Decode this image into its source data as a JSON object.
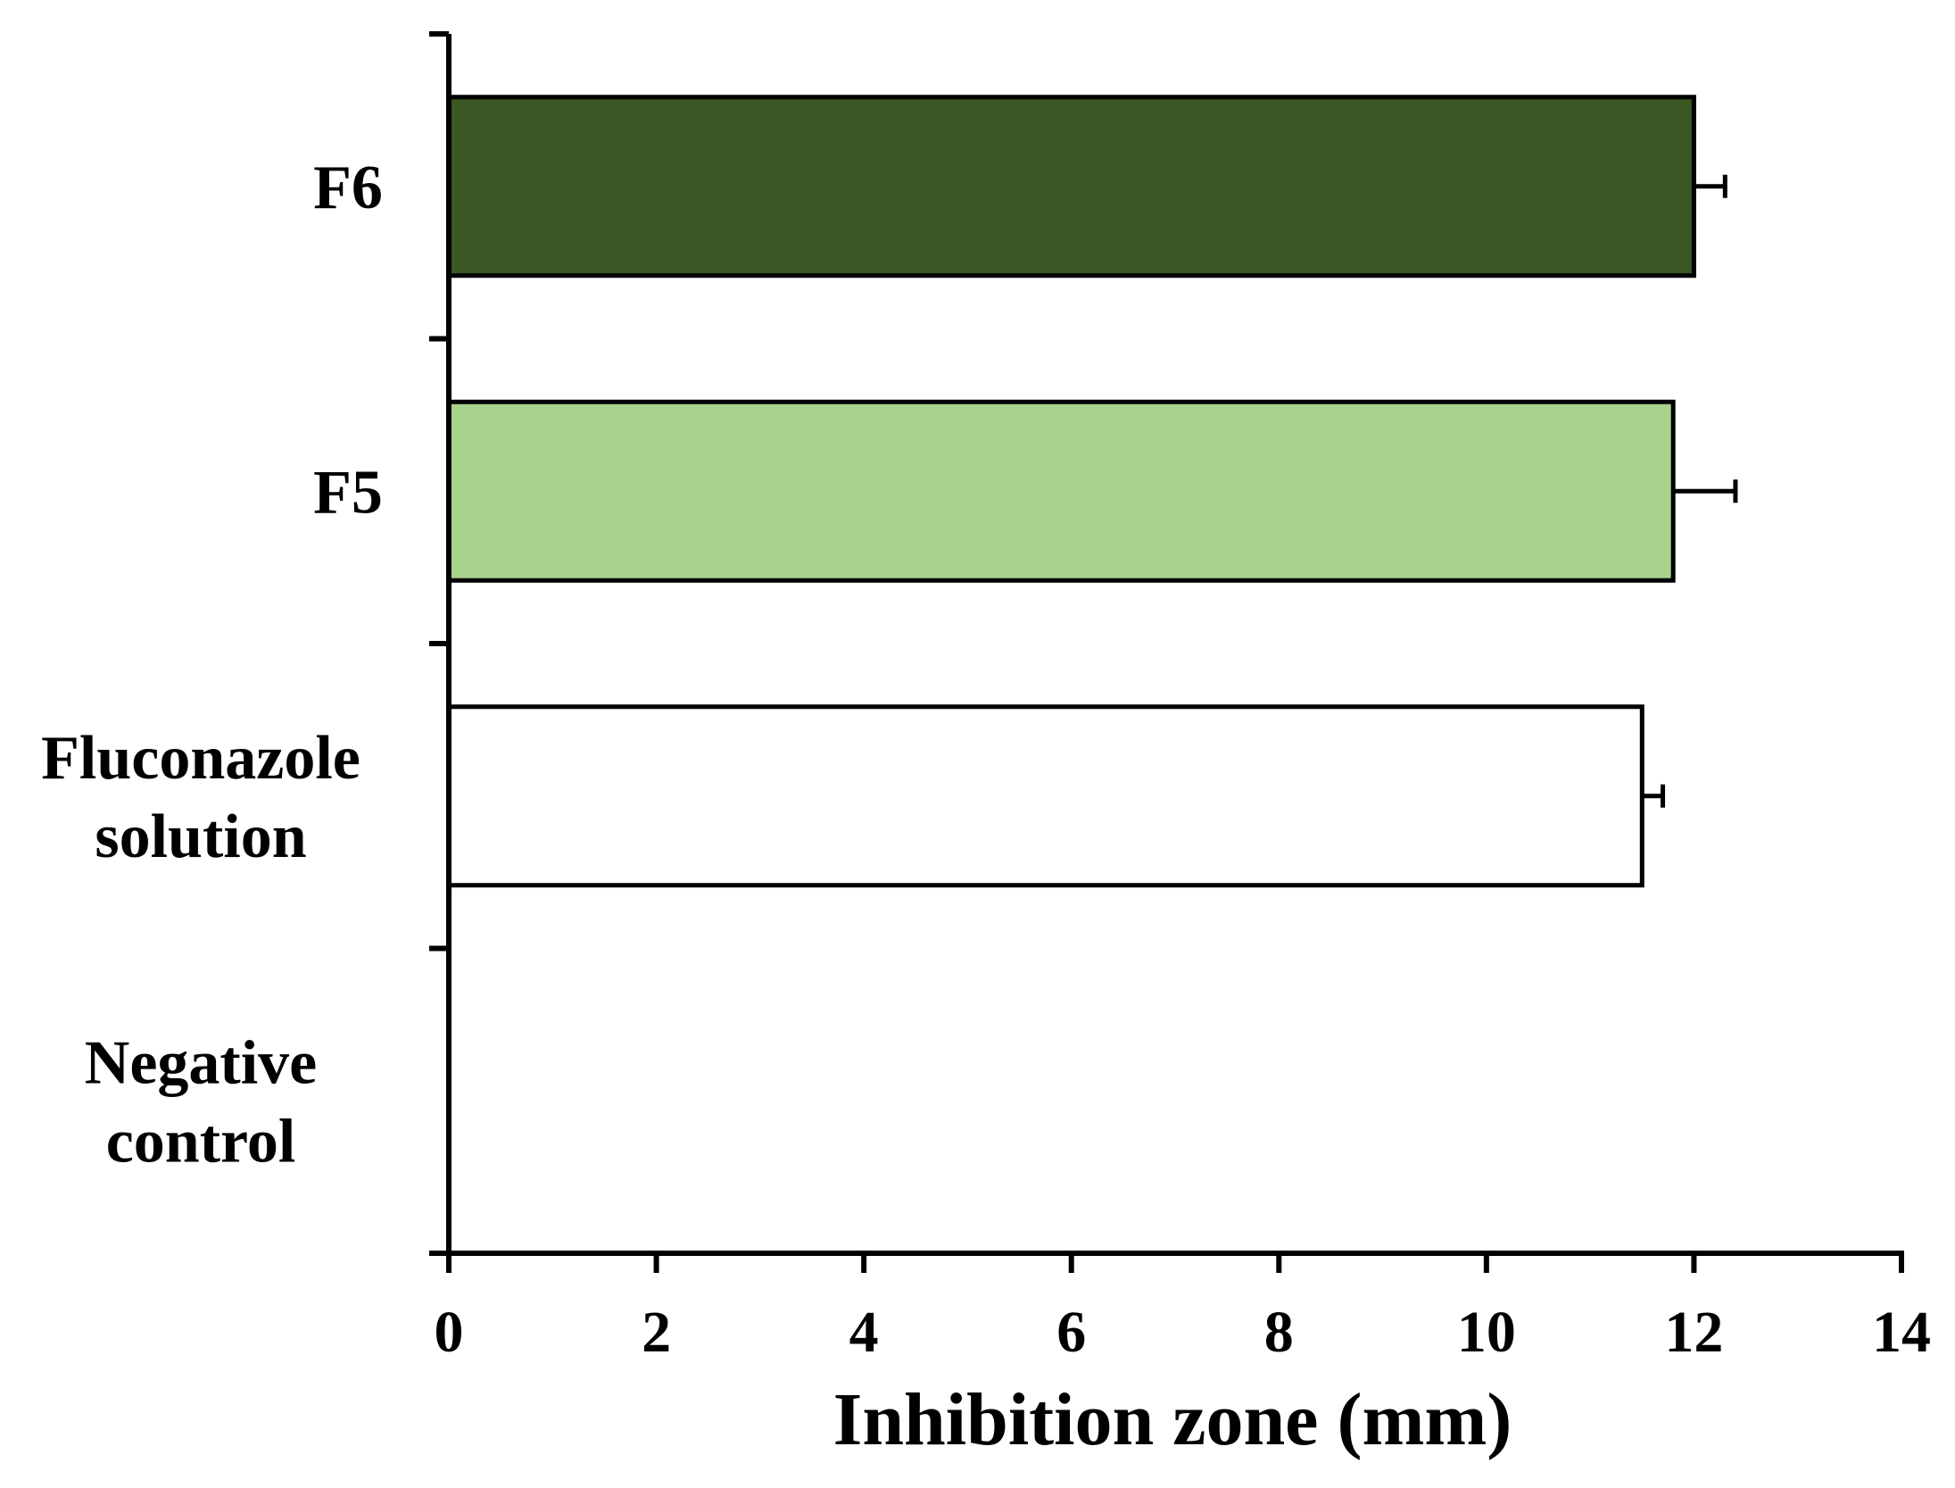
{
  "chart_data": {
    "type": "bar",
    "orientation": "horizontal",
    "categories": [
      {
        "lines": [
          "F6"
        ],
        "value": 12.0,
        "error": 0.3,
        "color": "#3b5724"
      },
      {
        "lines": [
          "F5"
        ],
        "value": 11.8,
        "error": 0.6,
        "color": "#a9d18e"
      },
      {
        "lines": [
          "Fluconazole",
          "solution"
        ],
        "value": 11.5,
        "error": 0.2,
        "color": "#ffffff"
      },
      {
        "lines": [
          "Negative",
          "control"
        ],
        "value": 0,
        "error": 0,
        "color": "#ffffff"
      }
    ],
    "xlabel": "Inhibition zone (mm)",
    "xlim": [
      0,
      14
    ],
    "xticks": [
      "0",
      "2",
      "4",
      "6",
      "8",
      "10",
      "12",
      "14"
    ],
    "grid": false,
    "legend": "none"
  }
}
